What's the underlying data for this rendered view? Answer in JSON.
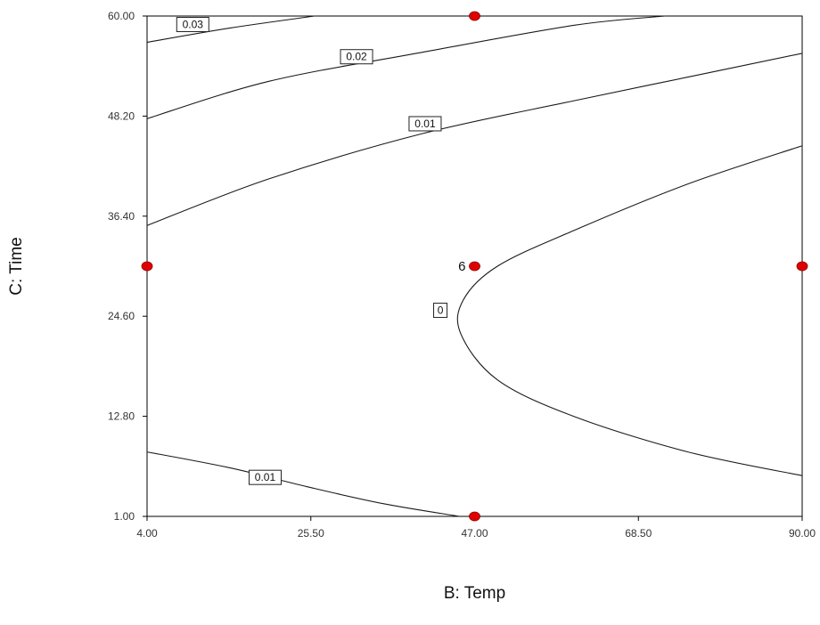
{
  "chart_data": {
    "type": "contour",
    "xlabel": "B: Temp",
    "ylabel": "C: Time",
    "xlim": [
      4.0,
      90.0
    ],
    "ylim": [
      1.0,
      60.0
    ],
    "x_ticks": [
      "4.00",
      "25.50",
      "47.00",
      "68.50",
      "90.00"
    ],
    "y_ticks": [
      "1.00",
      "12.80",
      "24.60",
      "36.40",
      "48.20",
      "60.00"
    ],
    "contours": [
      {
        "label": "0.03",
        "label_at": [
          10.0,
          59.0
        ],
        "points": [
          [
            4,
            56.9
          ],
          [
            15,
            58.6
          ],
          [
            26,
            60.0
          ]
        ]
      },
      {
        "label": "0.02",
        "label_at": [
          31.5,
          55.2
        ],
        "points": [
          [
            4,
            47.9
          ],
          [
            20,
            52.3
          ],
          [
            40,
            55.7
          ],
          [
            60,
            58.9
          ],
          [
            72,
            60.0
          ]
        ]
      },
      {
        "label": "0.01",
        "label_at": [
          40.5,
          47.3
        ],
        "points": [
          [
            4,
            35.3
          ],
          [
            20,
            40.8
          ],
          [
            40,
            46.1
          ],
          [
            60,
            50.0
          ],
          [
            75,
            52.8
          ],
          [
            90,
            55.6
          ]
        ]
      },
      {
        "label": "0",
        "label_at": [
          42.5,
          25.3
        ],
        "points": [
          [
            90,
            44.7
          ],
          [
            75,
            40.2
          ],
          [
            60,
            34.7
          ],
          [
            50,
            30.5
          ],
          [
            45.5,
            26.5
          ],
          [
            45.2,
            22.5
          ],
          [
            50,
            17.1
          ],
          [
            60,
            12.8
          ],
          [
            75,
            8.6
          ],
          [
            90,
            5.8
          ]
        ]
      },
      {
        "label": "0.01",
        "label_at": [
          19.5,
          5.6
        ],
        "points": [
          [
            4,
            8.6
          ],
          [
            15,
            6.7
          ],
          [
            25,
            4.5
          ],
          [
            35,
            2.5
          ],
          [
            45,
            1.0
          ]
        ]
      }
    ],
    "design_points": [
      {
        "x": 47.0,
        "y": 60.0
      },
      {
        "x": 4.0,
        "y": 30.5
      },
      {
        "x": 47.0,
        "y": 30.5
      },
      {
        "x": 90.0,
        "y": 30.5
      },
      {
        "x": 47.0,
        "y": 1.0
      }
    ],
    "point_annotation": {
      "text": "6",
      "x": 47.0,
      "y": 30.5
    },
    "point_color": "#e00000"
  }
}
